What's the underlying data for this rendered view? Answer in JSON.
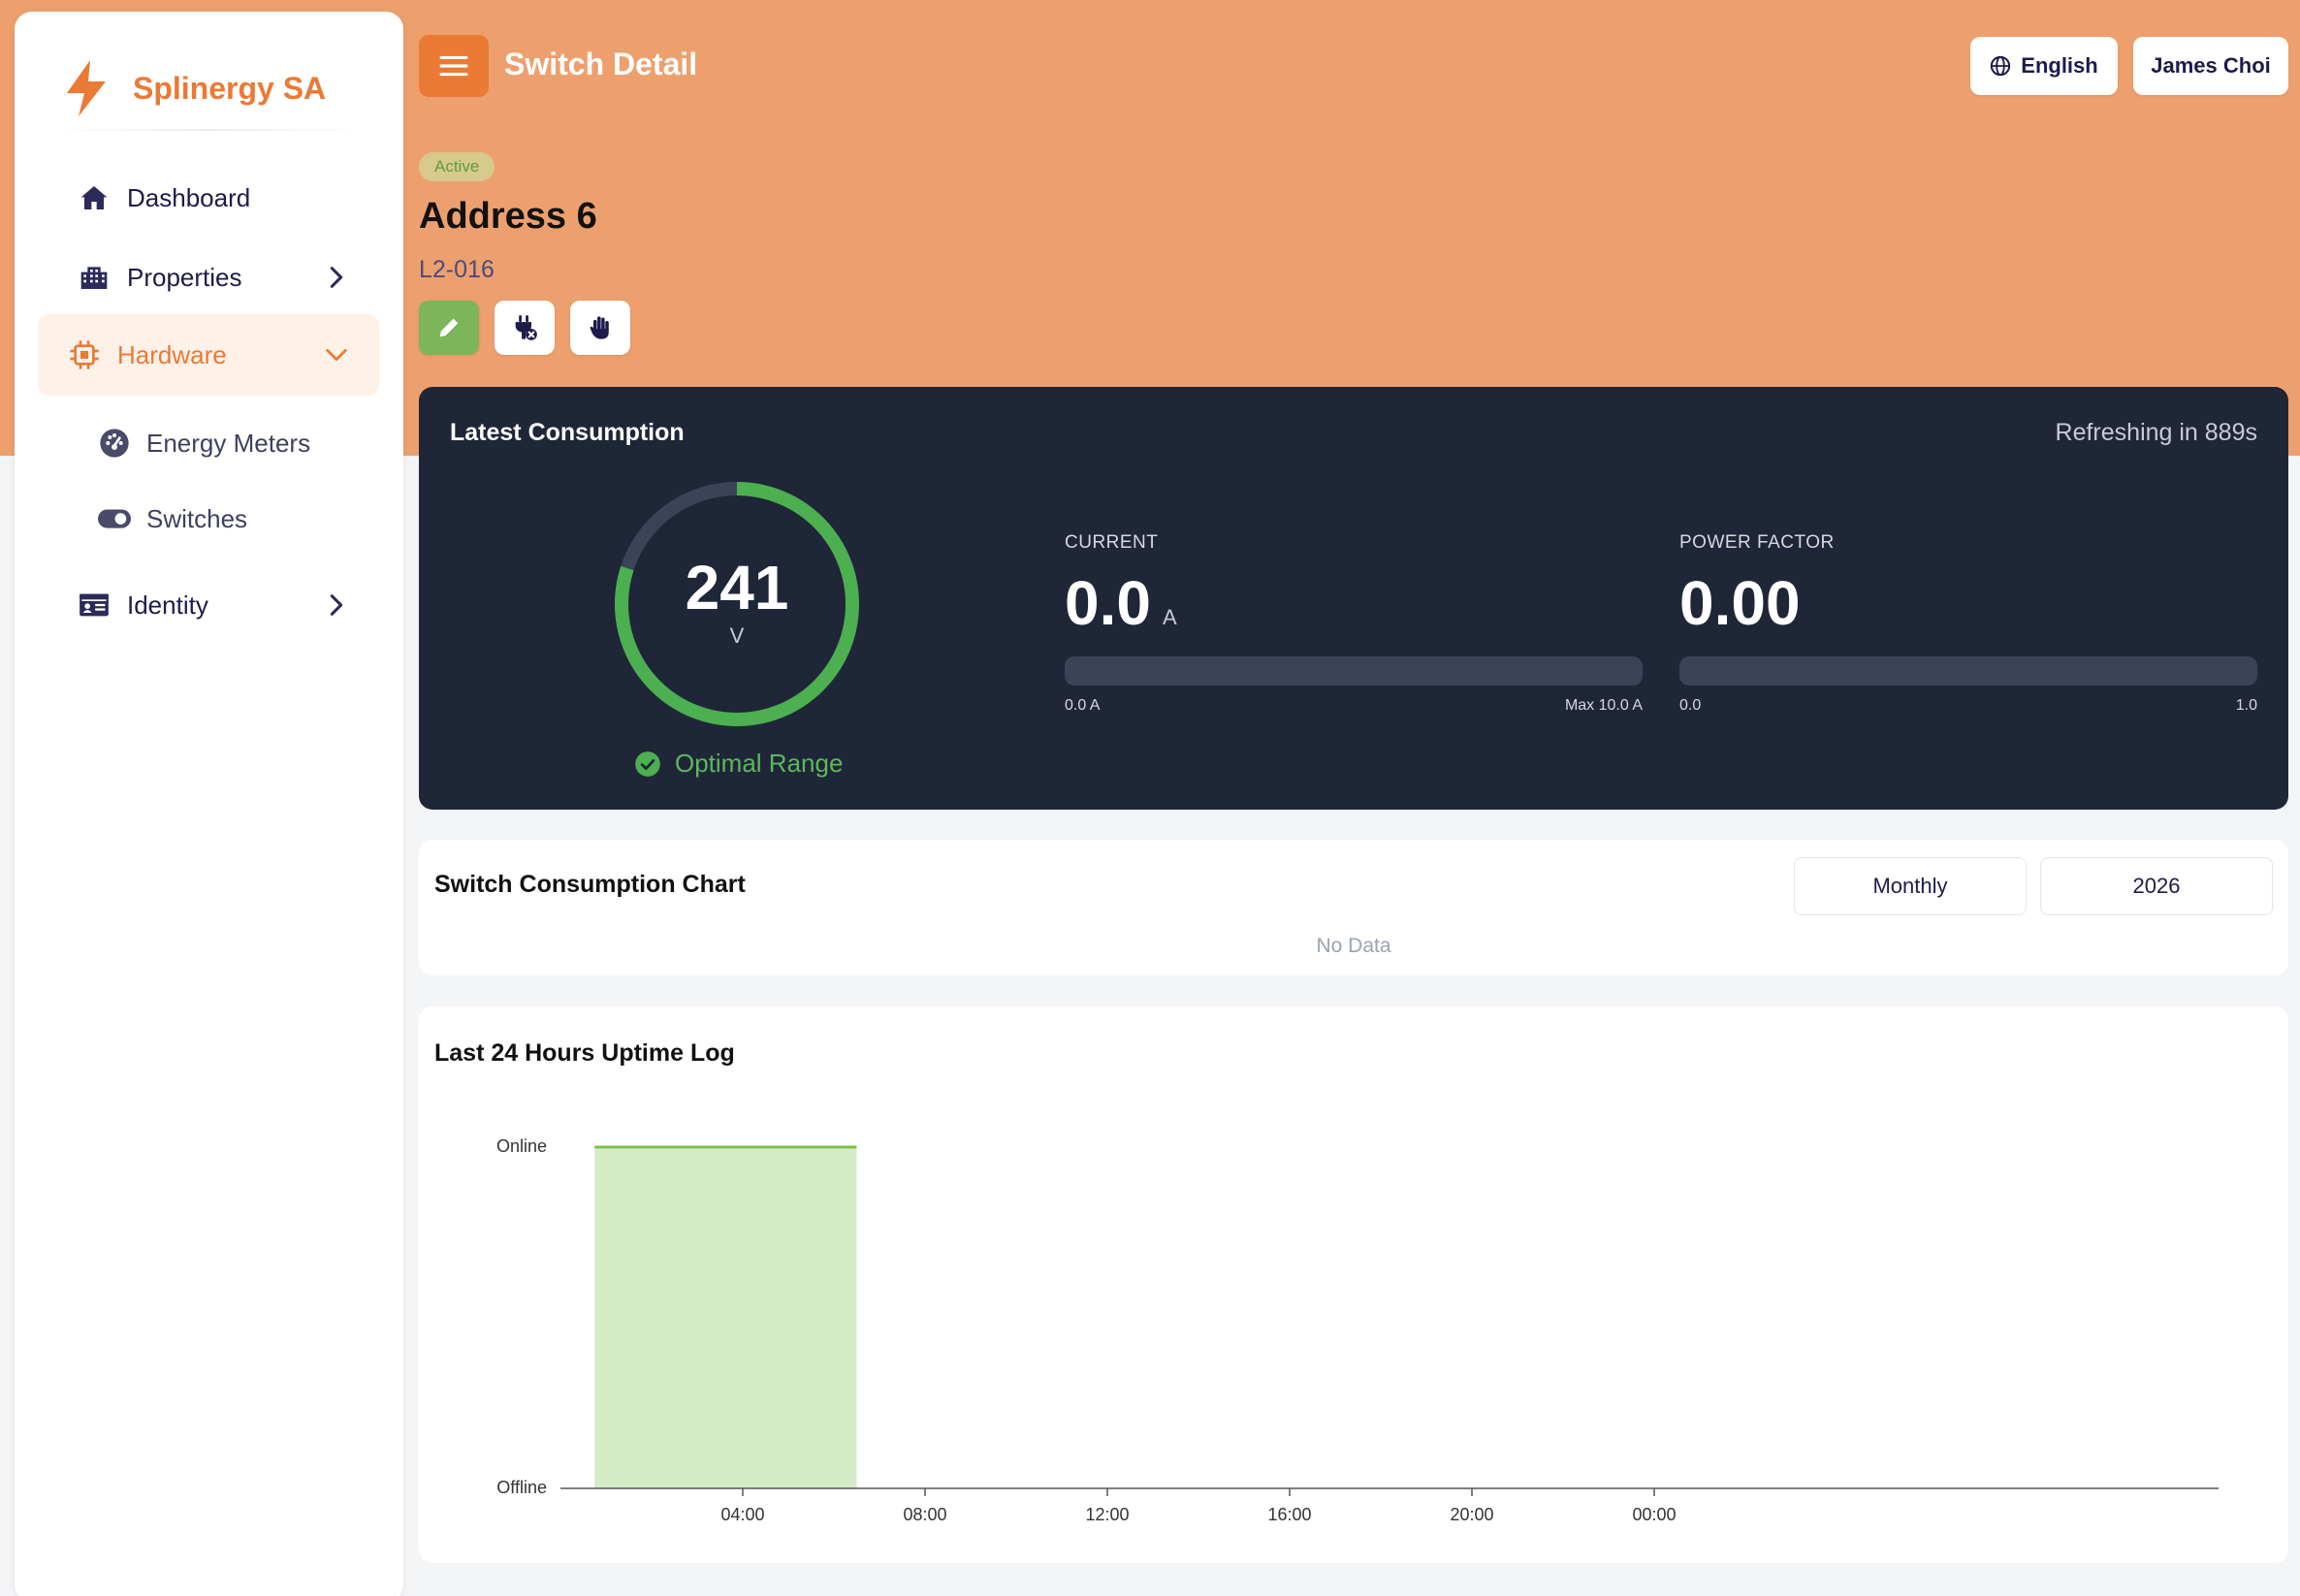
{
  "brand": {
    "name": "Splinergy SA",
    "logo_icon": "lightning-bolt-icon",
    "color": "#ea7a34"
  },
  "sidebar": {
    "items": [
      {
        "label": "Dashboard",
        "icon": "home-icon"
      },
      {
        "label": "Properties",
        "icon": "building-icon"
      },
      {
        "label": "Hardware",
        "icon": "chip-icon",
        "active": true
      },
      {
        "label": "Energy Meters",
        "icon": "gauge-icon"
      },
      {
        "label": "Switches",
        "icon": "toggle-icon"
      },
      {
        "label": "Identity",
        "icon": "id-card-icon"
      }
    ]
  },
  "header": {
    "title": "Switch Detail",
    "language": "English",
    "user": "James Choi"
  },
  "device": {
    "status": "Active",
    "title": "Address 6",
    "code": "L2-016"
  },
  "consumption": {
    "title": "Latest Consumption",
    "refresh": "Refreshing in 889s",
    "voltage": {
      "value": "241",
      "unit": "V",
      "status": "Optimal Range",
      "gauge_fraction": 0.8
    },
    "current": {
      "label": "CURRENT",
      "value": "0.0",
      "unit": "A",
      "min_label": "0.0 A",
      "max_label": "Max 10.0 A",
      "fraction": 0
    },
    "power_factor": {
      "label": "POWER FACTOR",
      "value": "0.00",
      "min_label": "0.0",
      "max_label": "1.0",
      "fraction": 0
    }
  },
  "consumption_chart": {
    "title": "Switch Consumption Chart",
    "period": "Monthly",
    "year": "2026",
    "empty": "No Data"
  },
  "uptime": {
    "title": "Last 24 Hours Uptime Log",
    "y_labels": [
      "Online",
      "Offline"
    ],
    "x_labels": [
      "04:00",
      "08:00",
      "12:00",
      "16:00",
      "20:00",
      "00:00"
    ]
  },
  "chart_data": {
    "type": "area",
    "title": "Last 24 Hours Uptime Log",
    "xlabel": "",
    "ylabel": "",
    "x_ticks": [
      "04:00",
      "08:00",
      "12:00",
      "16:00",
      "20:00",
      "00:00"
    ],
    "y_categories": [
      "Offline",
      "Online"
    ],
    "series": [
      {
        "points": [
          {
            "x": "00:45",
            "y": "Online"
          },
          {
            "x": "06:30",
            "y": "Online"
          },
          {
            "x": "06:30",
            "y": "Offline"
          },
          {
            "x": "00:45",
            "y": "Offline"
          }
        ]
      }
    ],
    "colors": {
      "fill": "#d4ecc6",
      "line": "#7cc04a"
    }
  }
}
